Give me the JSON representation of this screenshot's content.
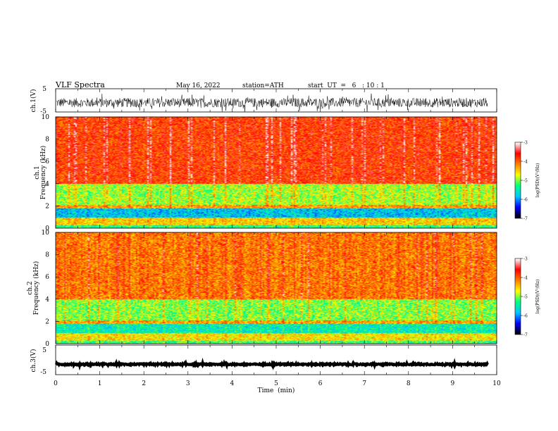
{
  "header": {
    "title": "VLF  Spectra",
    "date": "May 16, 2022",
    "station": "station=ATH",
    "start": "start  UT  =   6   : 10 : 1"
  },
  "colors": {
    "background": "#ffffff",
    "axis": "#000000",
    "waveform": "#000000",
    "colormap": [
      "#000000",
      "#0000ff",
      "#00c8ff",
      "#00ff80",
      "#ffff00",
      "#ff8000",
      "#ff0000",
      "#ffffff"
    ]
  },
  "chart_data": [
    {
      "type": "line",
      "panel": "ch1-waveform",
      "ylabel": "ch.1(V)",
      "ylim": [
        -5,
        5
      ],
      "yticks": [
        "5",
        "-5"
      ],
      "xlim": [
        0,
        10
      ],
      "trace": {
        "baseline": -1,
        "amplitude": 2,
        "end_time_min": 9.8
      }
    },
    {
      "type": "heatmap",
      "panel": "ch1-spectrogram",
      "ylabel": "ch.1\nFrequency  (kHz)",
      "ylim": [
        0,
        10
      ],
      "yticks": [
        "0",
        "2",
        "4",
        "6",
        "8",
        "10"
      ],
      "xlim": [
        0,
        10
      ],
      "colorbar": {
        "label": "log(PSD)(V²/Hz)",
        "range": [
          -7,
          -3
        ],
        "ticks": [
          "-3",
          "-4",
          "-5",
          "-6",
          "-7"
        ]
      },
      "bands_khz": [
        {
          "from": 0,
          "to": 0.3,
          "log_psd": -5.3
        },
        {
          "from": 0.3,
          "to": 1.0,
          "log_psd": -4.5
        },
        {
          "from": 1.0,
          "to": 1.8,
          "log_psd": -5.8
        },
        {
          "from": 1.8,
          "to": 2.1,
          "log_psd": -4.3
        },
        {
          "from": 2.1,
          "to": 4.0,
          "log_psd": -4.9
        },
        {
          "from": 4.0,
          "to": 10,
          "log_psd": -3.8
        }
      ]
    },
    {
      "type": "heatmap",
      "panel": "ch2-spectrogram",
      "ylabel": "ch.2\nFrequency  (kHz)",
      "ylim": [
        0,
        10
      ],
      "yticks": [
        "0",
        "2",
        "4",
        "6",
        "8",
        "10"
      ],
      "xlim": [
        0,
        10
      ],
      "colorbar": {
        "label": "log(PSD)(V²/Hz)",
        "range": [
          -7,
          -3
        ],
        "ticks": [
          "-3",
          "-4",
          "-5",
          "-6",
          "-7"
        ]
      },
      "bands_khz": [
        {
          "from": 0,
          "to": 0.3,
          "log_psd": -5.2
        },
        {
          "from": 0.3,
          "to": 1.0,
          "log_psd": -4.6
        },
        {
          "from": 1.0,
          "to": 1.8,
          "log_psd": -5.5
        },
        {
          "from": 1.8,
          "to": 2.1,
          "log_psd": -4.3
        },
        {
          "from": 2.1,
          "to": 4.0,
          "log_psd": -5.0
        },
        {
          "from": 4.0,
          "to": 10,
          "log_psd": -4.1
        }
      ]
    },
    {
      "type": "line",
      "panel": "ch3-waveform",
      "ylabel": "ch.3(V)",
      "ylim": [
        -5,
        5
      ],
      "yticks": [
        "5",
        "-5"
      ],
      "xlim": [
        0,
        10
      ],
      "xlabel": "Time  (min)",
      "xticks": [
        "0",
        "1",
        "2",
        "3",
        "4",
        "5",
        "6",
        "7",
        "8",
        "9",
        "10"
      ],
      "trace": {
        "baseline": -1.5,
        "amplitude": 0.2,
        "end_time_min": 9.8
      }
    }
  ]
}
